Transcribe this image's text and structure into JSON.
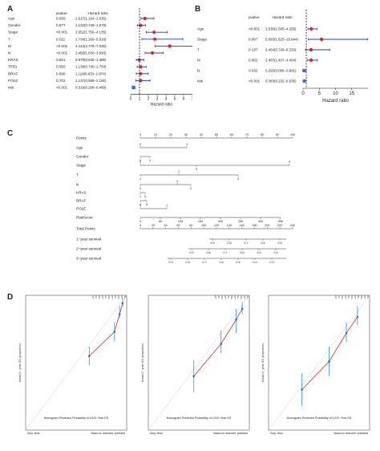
{
  "panels": {
    "a": "A",
    "b": "B",
    "c": "C",
    "d": "D"
  },
  "forest_a": {
    "col_pvalue": "pvalue",
    "col_hr": "Hazard ratio",
    "xlabel": "Hazard ratio",
    "ticks": [
      "0",
      "1",
      "2",
      "3",
      "4",
      "5",
      "6",
      "7"
    ],
    "rows": [
      {
        "var": "Age",
        "p": "0.009",
        "hr": "1.617(1.164−2.635)",
        "est": 1.617,
        "lo": 1.164,
        "hi": 2.635
      },
      {
        "var": "Gender",
        "p": "0.577",
        "hr": "1.122(0.749−1.679)",
        "est": 1.122,
        "lo": 0.749,
        "hi": 1.679
      },
      {
        "var": "Stage",
        "p": "<0.001",
        "hr": "2.652(1.756−4.135)",
        "est": 2.652,
        "lo": 1.756,
        "hi": 4.135
      },
      {
        "var": "T",
        "p": "0.011",
        "hr": "2.734(1.269−5.919)",
        "est": 2.734,
        "lo": 1.269,
        "hi": 5.919
      },
      {
        "var": "M",
        "p": "<0.001",
        "hr": "4.413(2.778−7.025)",
        "est": 4.413,
        "lo": 2.778,
        "hi": 7.025
      },
      {
        "var": "N",
        "p": "<0.001",
        "hr": "2.459(1.630−3.693)",
        "est": 2.459,
        "lo": 1.63,
        "hi": 3.693
      },
      {
        "var": "KRAS",
        "p": "0.921",
        "hr": "0.979(0.646−1.485)",
        "est": 0.979,
        "lo": 0.646,
        "hi": 1.485
      },
      {
        "var": "TP53",
        "p": "0.555",
        "hr": "1.139(0.740−1.754)",
        "est": 1.139,
        "lo": 0.74,
        "hi": 1.754
      },
      {
        "var": "BRAF",
        "p": "0.698",
        "hr": "1.118(0.633−1.974)",
        "est": 1.118,
        "lo": 0.633,
        "hi": 1.974
      },
      {
        "var": "POLE",
        "p": "0.702",
        "hr": "1.137(0.589−2.192)",
        "est": 1.137,
        "lo": 0.589,
        "hi": 2.192
      },
      {
        "var": "risk",
        "p": "<0.001",
        "hr": "0.319(0.209−0.489)",
        "est": 0.319,
        "lo": 0.209,
        "hi": 0.489
      }
    ]
  },
  "forest_b": {
    "col_pvalue": "pvalue",
    "col_hr": "Hazard ratio",
    "xlabel": "Hazard ratio",
    "ticks": [
      "0",
      "5",
      "10",
      "15"
    ],
    "rows": [
      {
        "var": "Age",
        "p": "<0.001",
        "hr": "2.530(1.505−4.255)",
        "est": 2.53,
        "lo": 1.505,
        "hi": 4.255
      },
      {
        "var": "Stage",
        "p": "0.007",
        "hr": "5.693(1.625−19.944)",
        "est": 5.693,
        "lo": 1.625,
        "hi": 19.944
      },
      {
        "var": "T",
        "p": "0.137",
        "hr": "2.464(0.749−8.233)",
        "est": 2.464,
        "lo": 0.749,
        "hi": 8.233
      },
      {
        "var": "M",
        "p": "0.002",
        "hr": "2.487(1.407−4.404)",
        "est": 2.487,
        "lo": 1.407,
        "hi": 4.404
      },
      {
        "var": "N",
        "p": "0.032",
        "hr": "0.293(0.095−0.901)",
        "est": 0.293,
        "lo": 0.095,
        "hi": 0.901
      },
      {
        "var": "risk",
        "p": "<0.001",
        "hr": "0.383(0.232−0.635)",
        "est": 0.383,
        "lo": 0.232,
        "hi": 0.635
      }
    ]
  },
  "nomogram": {
    "rows": [
      "Points",
      "Age",
      "Gender",
      "Stage",
      "T",
      "N",
      "KRAS",
      "BRAF",
      "POLE",
      "RiskScore",
      "Total Points",
      "1−year survival",
      "2−year survival",
      "3−year survival"
    ],
    "points_ticks": [
      "0",
      "10",
      "20",
      "30",
      "40",
      "50",
      "60",
      "70",
      "80",
      "90",
      "100"
    ],
    "risk_ticks": [
      "0",
      "50",
      "100",
      "150",
      "200",
      "250",
      "300",
      "350"
    ],
    "total_ticks": [
      "0",
      "20",
      "40",
      "60",
      "80",
      "100",
      "120",
      "140",
      "160",
      "180",
      "200",
      "220",
      "240"
    ],
    "surv1_ticks": [
      "0.9",
      "0.8",
      "0.7",
      "0.6",
      "0.5"
    ],
    "surv2_ticks": [
      "0.9",
      "0.8",
      "0.7",
      "0.6",
      "0.5",
      "0.4"
    ],
    "surv3_ticks": [
      "0.9",
      "0.8",
      "0.7",
      "0.6",
      "0.5",
      "0.4",
      "0.3"
    ]
  },
  "calibration": {
    "ylabels": [
      "Actual 1− year OS (proportion)",
      "Actual 2− year OS (proportion)",
      "Actual 3− year OS (proportion)"
    ],
    "xlabel": "Nomogram-Predicted Probability of 1/2/3−Year OS",
    "footnote_left": "Gray: ideal",
    "footnote_right": "Based on observed−predicted"
  }
}
